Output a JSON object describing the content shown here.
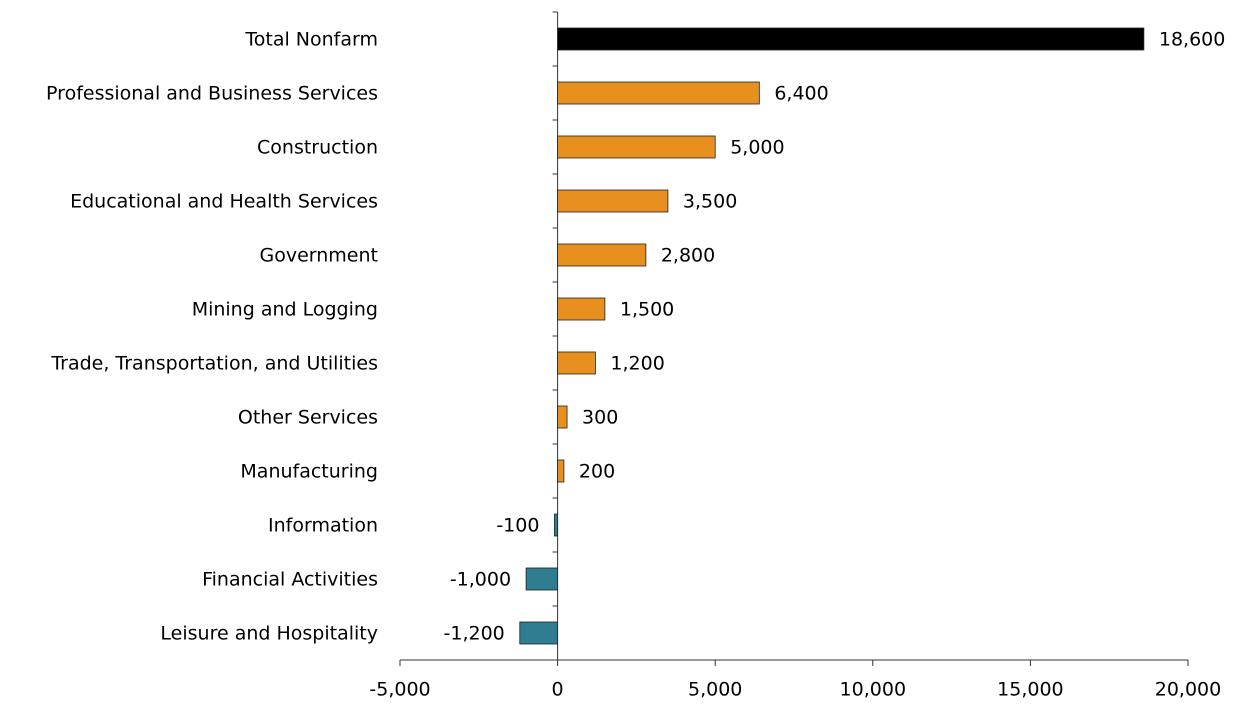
{
  "chart_data": {
    "type": "bar",
    "orientation": "horizontal",
    "categories": [
      "Total Nonfarm",
      "Professional and Business Services",
      "Construction",
      "Educational and Health Services",
      "Government",
      "Mining and Logging",
      "Trade, Transportation, and Utilities",
      "Other Services",
      "Manufacturing",
      "Information",
      "Financial Activities",
      "Leisure and Hospitality"
    ],
    "values": [
      18600,
      6400,
      5000,
      3500,
      2800,
      1500,
      1200,
      300,
      200,
      -100,
      -1000,
      -1200
    ],
    "value_labels": [
      "18,600",
      "6,400",
      "5,000",
      "3,500",
      "2,800",
      "1,500",
      "1,200",
      "300",
      "200",
      "-100",
      "-1,000",
      "-1,200"
    ],
    "colors": [
      "#000000",
      "#e8901f",
      "#e8901f",
      "#e8901f",
      "#e8901f",
      "#e8901f",
      "#e8901f",
      "#e8901f",
      "#e8901f",
      "#2e7d91",
      "#2e7d91",
      "#2e7d91"
    ],
    "xlim": [
      -5000,
      20000
    ],
    "xticks": [
      {
        "value": -5000,
        "label": "-5,000"
      },
      0,
      {
        "value": 5000,
        "label": "5,000"
      },
      {
        "value": 10000,
        "label": "10,000"
      },
      {
        "value": 15000,
        "label": "15,000"
      },
      {
        "value": 20000,
        "label": "20,000"
      }
    ],
    "grid": false
  }
}
